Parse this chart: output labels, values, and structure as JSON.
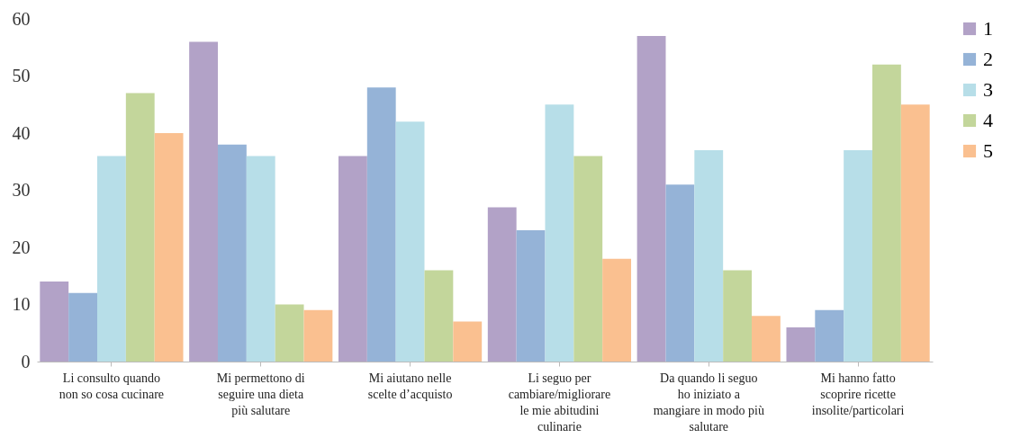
{
  "chart_data": {
    "type": "bar",
    "categories": [
      "Li consulto quando non so cosa cucinare",
      "Mi permettono di seguire una dieta più salutare",
      "Mi aiutano nelle scelte d’acquisto",
      "Li seguo per cambiare/migliorare le mie abitudini culinarie",
      "Da quando li seguo ho iniziato a mangiare in modo più salutare",
      "Mi hanno fatto scoprire ricette insolite/particolari"
    ],
    "series": [
      {
        "name": "1",
        "color": "#b2a2c7",
        "values": [
          14,
          56,
          36,
          27,
          57,
          6
        ]
      },
      {
        "name": "2",
        "color": "#95b3d7",
        "values": [
          12,
          38,
          48,
          23,
          31,
          9
        ]
      },
      {
        "name": "3",
        "color": "#b7dee8",
        "values": [
          36,
          36,
          42,
          45,
          37,
          37
        ]
      },
      {
        "name": "4",
        "color": "#c3d69b",
        "values": [
          47,
          10,
          16,
          36,
          16,
          52
        ]
      },
      {
        "name": "5",
        "color": "#fac090",
        "values": [
          40,
          9,
          7,
          18,
          8,
          45
        ]
      }
    ],
    "ylim": [
      0,
      60
    ],
    "yticks": [
      0,
      10,
      20,
      30,
      40,
      50,
      60
    ],
    "grid": false,
    "legend": "right"
  }
}
